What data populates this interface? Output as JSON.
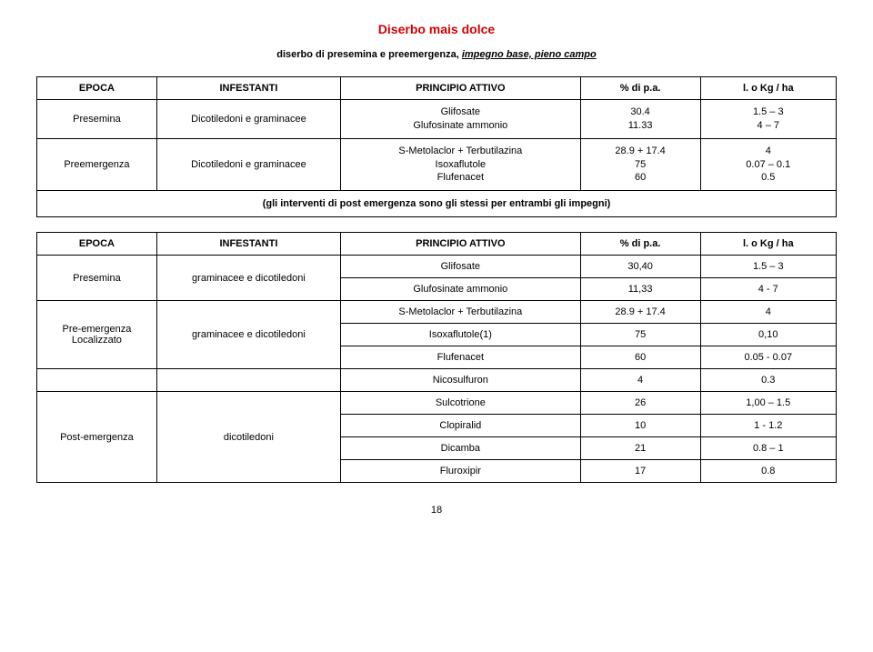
{
  "page_title": "Diserbo mais dolce",
  "subtitle_plain": "diserbo di presemina e preemergenza,",
  "subtitle_italic": "impegno base, pieno campo",
  "headers": {
    "epoca": "EPOCA",
    "infestanti": "INFESTANTI",
    "principio": "PRINCIPIO ATTIVO",
    "pa": "% di p.a.",
    "kg": "l. o Kg / ha"
  },
  "t1": {
    "rows": [
      {
        "epoca": "Presemina",
        "infestanti": "Dicotiledoni e graminacee",
        "principio": [
          "Glifosate",
          "Glufosinate ammonio"
        ],
        "pa": [
          "30.4",
          "11.33"
        ],
        "kg": [
          "1.5 – 3",
          "4 – 7"
        ]
      },
      {
        "epoca": "Preemergenza",
        "infestanti": "Dicotiledoni e graminacee",
        "principio": [
          "S-Metolaclor + Terbutilazina",
          "Isoxaflutole",
          "Flufenacet"
        ],
        "pa": [
          "28.9 + 17.4",
          "75",
          "60"
        ],
        "kg": [
          "4",
          "0.07 – 0.1",
          "0.5"
        ]
      }
    ],
    "note": "(gli interventi di post emergenza sono gli stessi per entrambi gli impegni)"
  },
  "t2": {
    "rows": [
      {
        "epoca": "Presemina",
        "infestanti": "graminacee e dicotiledoni",
        "lines": [
          {
            "principio": "Glifosate",
            "pa": "30,40",
            "kg": "1.5 – 3"
          },
          {
            "principio": "Glufosinate ammonio",
            "pa": "11,33",
            "kg": "4 - 7"
          }
        ]
      },
      {
        "epoca": "Pre-emergenza Localizzato",
        "infestanti": "graminacee e dicotiledoni",
        "lines": [
          {
            "principio": "S-Metolaclor + Terbutilazina",
            "pa": "28.9 + 17.4",
            "kg": "4"
          },
          {
            "principio": "Isoxaflutole(1)",
            "pa": "75",
            "kg": "0,10"
          },
          {
            "principio": "Flufenacet",
            "pa": "60",
            "kg": "0.05 - 0.07"
          }
        ]
      },
      {
        "epoca": "",
        "infestanti": "",
        "lines": [
          {
            "principio": "Nicosulfuron",
            "pa": "4",
            "kg": "0.3"
          }
        ]
      },
      {
        "epoca": "Post-emergenza",
        "infestanti": "dicotiledoni",
        "lines": [
          {
            "principio": "Sulcotrione",
            "pa": "26",
            "kg": "1,00 – 1.5"
          },
          {
            "principio": "Clopiralid",
            "pa": "10",
            "kg": "1 - 1.2"
          },
          {
            "principio": "Dicamba",
            "pa": "21",
            "kg": "0.8 – 1"
          },
          {
            "principio": "Fluroxipir",
            "pa": "17",
            "kg": "0.8"
          }
        ]
      }
    ]
  },
  "page_number": "18"
}
